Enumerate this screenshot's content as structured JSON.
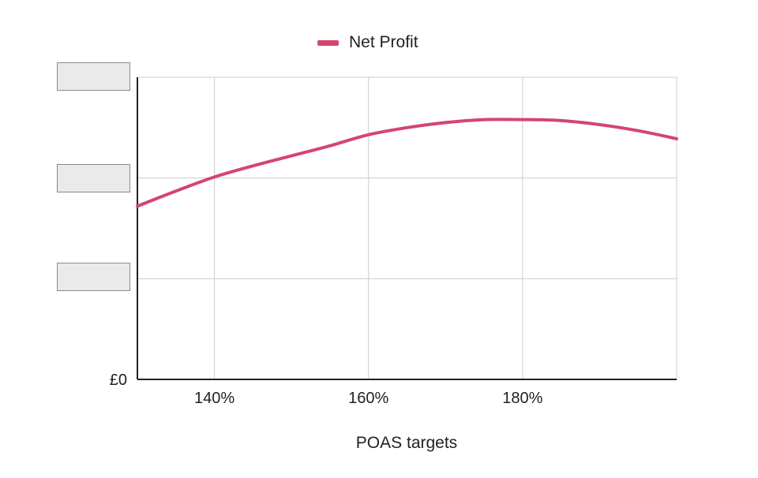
{
  "chart_data": {
    "type": "line",
    "title": "",
    "xlabel": "POAS targets",
    "ylabel": "",
    "x_ticks": [
      "140%",
      "160%",
      "180%"
    ],
    "y_ticks": [
      "£0"
    ],
    "y_ticks_redacted": 3,
    "xlim": [
      130,
      200
    ],
    "ylim": [
      0,
      3
    ],
    "grid": true,
    "legend_position": "top-center",
    "series": [
      {
        "name": "Net Profit",
        "color": "#d4456f",
        "x": [
          130,
          135,
          140,
          145,
          150,
          155,
          160,
          165,
          170,
          175,
          180,
          185,
          190,
          195,
          200
        ],
        "y": [
          1.72,
          1.87,
          2.01,
          2.12,
          2.22,
          2.32,
          2.43,
          2.5,
          2.55,
          2.58,
          2.58,
          2.57,
          2.53,
          2.47,
          2.39
        ]
      }
    ]
  },
  "legend": {
    "label": "Net Profit",
    "color": "#d4456f"
  },
  "axis": {
    "xlabel": "POAS targets"
  }
}
